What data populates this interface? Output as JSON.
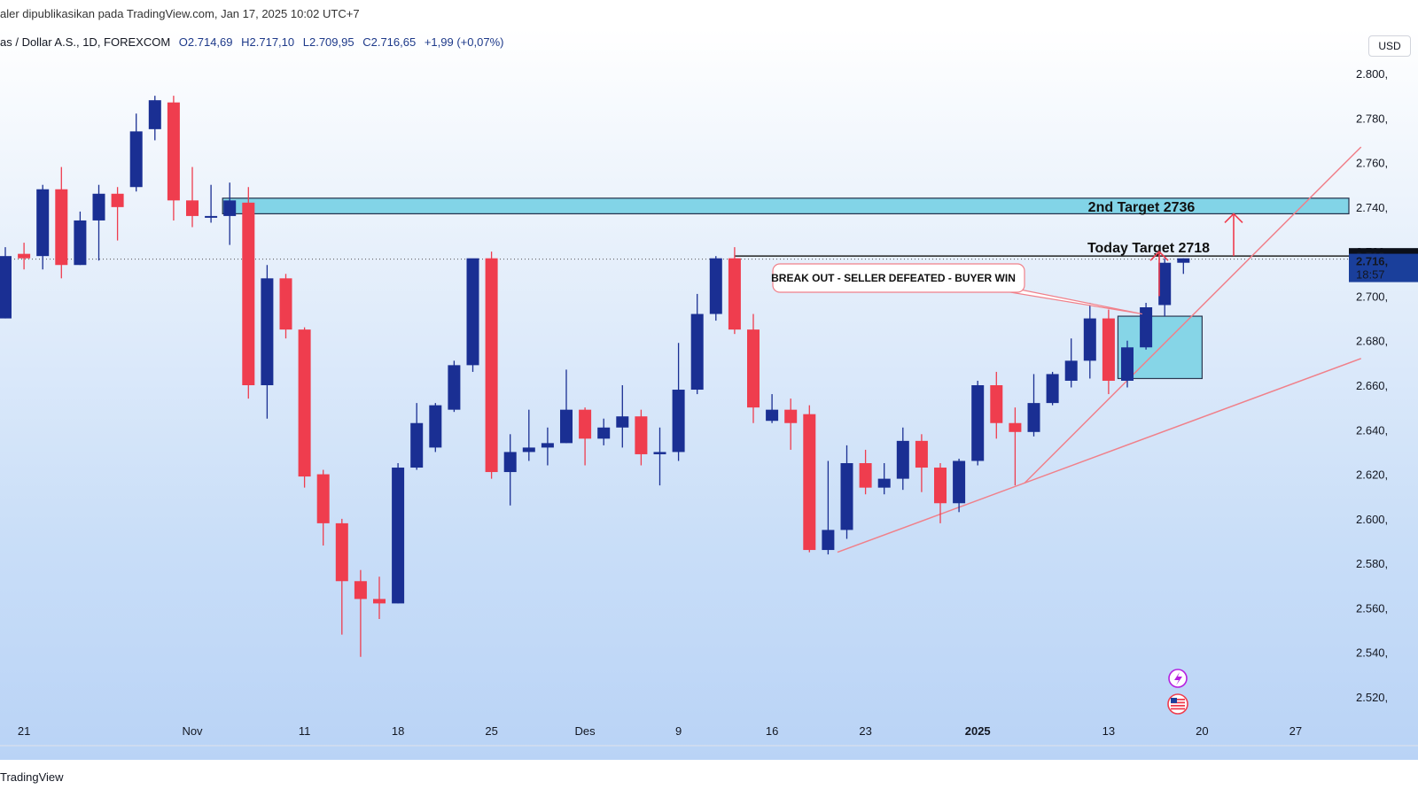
{
  "header": {
    "published": "aler dipublikasikan pada TradingView.com, Jan 17, 2025 10:02 UTC+7"
  },
  "legend": {
    "symbol": "as / Dollar A.S., 1D, FOREXCOM",
    "open": "O2.714,69",
    "high": "H2.717,10",
    "low": "L2.709,95",
    "close": "C2.716,65",
    "change": "+1,99 (+0,07%)"
  },
  "currency": "USD",
  "footer": {
    "brand": "TradingView"
  },
  "icons": [
    "lightning-icon",
    "us-flag-icon"
  ],
  "colors": {
    "up": "#1a2f93",
    "down": "#ef3d4e",
    "zone": "#7dd3e6",
    "trendline": "#f0808a"
  },
  "chart_data": {
    "type": "candlestick",
    "interval": "1D",
    "y_axis_ticks": [
      "2.800,",
      "2.780,",
      "2.760,",
      "2.740,",
      "2.720,",
      "2.700,",
      "2.680,",
      "2.660,",
      "2.640,",
      "2.620,",
      "2.600,",
      "2.580,",
      "2.560,",
      "2.540,",
      "2.520,"
    ],
    "y_ticks_values": [
      2800,
      2780,
      2760,
      2740,
      2720,
      2700,
      2680,
      2660,
      2640,
      2620,
      2600,
      2580,
      2560,
      2540,
      2520
    ],
    "ylim": [
      2510,
      2805
    ],
    "x_ticks": [
      {
        "label": "21",
        "i": 1
      },
      {
        "label": "Nov",
        "i": 10
      },
      {
        "label": "11",
        "i": 16
      },
      {
        "label": "18",
        "i": 21
      },
      {
        "label": "25",
        "i": 26
      },
      {
        "label": "Des",
        "i": 31
      },
      {
        "label": "9",
        "i": 36
      },
      {
        "label": "16",
        "i": 41
      },
      {
        "label": "23",
        "i": 46
      },
      {
        "label": "2025",
        "i": 52
      },
      {
        "label": "13",
        "i": 59
      },
      {
        "label": "20",
        "i": 64
      },
      {
        "label": "27",
        "i": 69
      }
    ],
    "candles": [
      {
        "o": 2690,
        "h": 2722,
        "l": 2690,
        "c": 2718
      },
      {
        "o": 2719,
        "h": 2724,
        "l": 2712,
        "c": 2717
      },
      {
        "o": 2718,
        "h": 2750,
        "l": 2712,
        "c": 2748
      },
      {
        "o": 2748,
        "h": 2758,
        "l": 2708,
        "c": 2714
      },
      {
        "o": 2714,
        "h": 2738,
        "l": 2714,
        "c": 2734
      },
      {
        "o": 2734,
        "h": 2750,
        "l": 2716,
        "c": 2746
      },
      {
        "o": 2746,
        "h": 2749,
        "l": 2725,
        "c": 2740
      },
      {
        "o": 2749,
        "h": 2782,
        "l": 2747,
        "c": 2774
      },
      {
        "o": 2775,
        "h": 2790,
        "l": 2770,
        "c": 2788
      },
      {
        "o": 2787,
        "h": 2790,
        "l": 2734,
        "c": 2743
      },
      {
        "o": 2743,
        "h": 2758,
        "l": 2731,
        "c": 2736
      },
      {
        "o": 2736,
        "h": 2750,
        "l": 2733,
        "c": 2736
      },
      {
        "o": 2736,
        "h": 2751,
        "l": 2723,
        "c": 2743
      },
      {
        "o": 2742,
        "h": 2749,
        "l": 2654,
        "c": 2660
      },
      {
        "o": 2660,
        "h": 2714,
        "l": 2645,
        "c": 2708
      },
      {
        "o": 2708,
        "h": 2710,
        "l": 2681,
        "c": 2685
      },
      {
        "o": 2685,
        "h": 2686,
        "l": 2614,
        "c": 2619
      },
      {
        "o": 2620,
        "h": 2622,
        "l": 2588,
        "c": 2598
      },
      {
        "o": 2598,
        "h": 2600,
        "l": 2548,
        "c": 2572
      },
      {
        "o": 2572,
        "h": 2577,
        "l": 2538,
        "c": 2564
      },
      {
        "o": 2564,
        "h": 2574,
        "l": 2555,
        "c": 2562
      },
      {
        "o": 2562,
        "h": 2625,
        "l": 2562,
        "c": 2623
      },
      {
        "o": 2623,
        "h": 2652,
        "l": 2622,
        "c": 2643
      },
      {
        "o": 2632,
        "h": 2652,
        "l": 2630,
        "c": 2651
      },
      {
        "o": 2649,
        "h": 2671,
        "l": 2648,
        "c": 2669
      },
      {
        "o": 2669,
        "h": 2716,
        "l": 2666,
        "c": 2717
      },
      {
        "o": 2717,
        "h": 2720,
        "l": 2618,
        "c": 2621
      },
      {
        "o": 2621,
        "h": 2638,
        "l": 2606,
        "c": 2630
      },
      {
        "o": 2630,
        "h": 2649,
        "l": 2626,
        "c": 2632
      },
      {
        "o": 2632,
        "h": 2641,
        "l": 2624,
        "c": 2634
      },
      {
        "o": 2634,
        "h": 2667,
        "l": 2634,
        "c": 2649
      },
      {
        "o": 2649,
        "h": 2650,
        "l": 2624,
        "c": 2636
      },
      {
        "o": 2636,
        "h": 2645,
        "l": 2633,
        "c": 2641
      },
      {
        "o": 2641,
        "h": 2660,
        "l": 2632,
        "c": 2646
      },
      {
        "o": 2646,
        "h": 2649,
        "l": 2624,
        "c": 2629
      },
      {
        "o": 2629,
        "h": 2641,
        "l": 2615,
        "c": 2630
      },
      {
        "o": 2630,
        "h": 2679,
        "l": 2626,
        "c": 2658
      },
      {
        "o": 2658,
        "h": 2701,
        "l": 2656,
        "c": 2692
      },
      {
        "o": 2692,
        "h": 2718,
        "l": 2689,
        "c": 2717
      },
      {
        "o": 2717,
        "h": 2722,
        "l": 2683,
        "c": 2685
      },
      {
        "o": 2685,
        "h": 2692,
        "l": 2643,
        "c": 2650
      },
      {
        "o": 2644,
        "h": 2656,
        "l": 2643,
        "c": 2649
      },
      {
        "o": 2649,
        "h": 2654,
        "l": 2631,
        "c": 2643
      },
      {
        "o": 2647,
        "h": 2651,
        "l": 2585,
        "c": 2586
      },
      {
        "o": 2586,
        "h": 2626,
        "l": 2584,
        "c": 2595
      },
      {
        "o": 2595,
        "h": 2633,
        "l": 2591,
        "c": 2625
      },
      {
        "o": 2625,
        "h": 2631,
        "l": 2611,
        "c": 2614
      },
      {
        "o": 2614,
        "h": 2625,
        "l": 2611,
        "c": 2618
      },
      {
        "o": 2618,
        "h": 2641,
        "l": 2613,
        "c": 2635
      },
      {
        "o": 2635,
        "h": 2638,
        "l": 2612,
        "c": 2623
      },
      {
        "o": 2623,
        "h": 2625,
        "l": 2598,
        "c": 2607
      },
      {
        "o": 2607,
        "h": 2627,
        "l": 2603,
        "c": 2626
      },
      {
        "o": 2626,
        "h": 2662,
        "l": 2624,
        "c": 2660
      },
      {
        "o": 2660,
        "h": 2666,
        "l": 2636,
        "c": 2643
      },
      {
        "o": 2643,
        "h": 2650,
        "l": 2615,
        "c": 2639
      },
      {
        "o": 2639,
        "h": 2665,
        "l": 2637,
        "c": 2652
      },
      {
        "o": 2652,
        "h": 2666,
        "l": 2651,
        "c": 2665
      },
      {
        "o": 2662,
        "h": 2681,
        "l": 2659,
        "c": 2671
      },
      {
        "o": 2671,
        "h": 2697,
        "l": 2663,
        "c": 2690
      },
      {
        "o": 2690,
        "h": 2694,
        "l": 2656,
        "c": 2662
      },
      {
        "o": 2662,
        "h": 2680,
        "l": 2659,
        "c": 2677
      },
      {
        "o": 2677,
        "h": 2697,
        "l": 2676,
        "c": 2695
      },
      {
        "o": 2696,
        "h": 2717,
        "l": 2691,
        "c": 2715
      },
      {
        "o": 2715,
        "h": 2717,
        "l": 2710,
        "c": 2717
      }
    ],
    "annotations": {
      "second_target_zone": {
        "label": "2nd Target 2736",
        "top": 2744,
        "bottom": 2737
      },
      "today_target": {
        "label": "Today Target 2718",
        "value": 2718
      },
      "breakout_label": "BREAK OUT - SELLER DEFEATED - BUYER WIN",
      "breakout_box": {
        "i_from": 59.5,
        "i_to": 64,
        "top": 2691,
        "bottom": 2663
      },
      "dotted_close_line": 2716.65,
      "price_labels": {
        "today": "2.718,",
        "last": "2.716,",
        "countdown": "18:57"
      },
      "trendline_lower": {
        "from": [
          44.5,
          2585
        ],
        "to": [
          72.5,
          2672
        ]
      },
      "trendline_upper": {
        "from": [
          54.5,
          2616
        ],
        "to": [
          72.5,
          2767
        ]
      }
    }
  }
}
